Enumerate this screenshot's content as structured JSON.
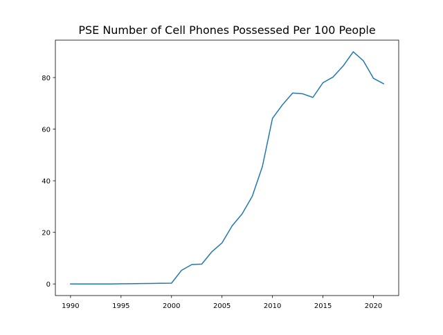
{
  "chart_data": {
    "type": "line",
    "title": "PSE Number of Cell Phones Possessed Per 100 People",
    "xlabel": "",
    "ylabel": "",
    "xlim": [
      1988.5,
      2022.5
    ],
    "ylim": [
      -4.5,
      94.5
    ],
    "grid": false,
    "xticks": [
      1990,
      1995,
      2000,
      2005,
      2010,
      2015,
      2020
    ],
    "yticks": [
      0,
      20,
      40,
      60,
      80
    ],
    "series": [
      {
        "color": "#1f77b4",
        "x": [
          1990,
          1991,
          1992,
          1993,
          1994,
          1995,
          1996,
          1997,
          1998,
          1999,
          2000,
          2001,
          2002,
          2003,
          2004,
          2005,
          2006,
          2007,
          2008,
          2009,
          2010,
          2011,
          2012,
          2013,
          2014,
          2015,
          2016,
          2017,
          2018,
          2019,
          2020,
          2021
        ],
        "y": [
          0,
          0,
          0,
          0,
          0,
          0.05,
          0.1,
          0.15,
          0.2,
          0.25,
          0.3,
          5.3,
          7.5,
          7.7,
          12.5,
          15.9,
          22.5,
          27.2,
          34.0,
          45.5,
          64.2,
          69.5,
          74.0,
          73.7,
          72.3,
          78.0,
          80.2,
          84.5,
          90.0,
          86.5,
          79.7,
          77.6
        ]
      }
    ]
  }
}
